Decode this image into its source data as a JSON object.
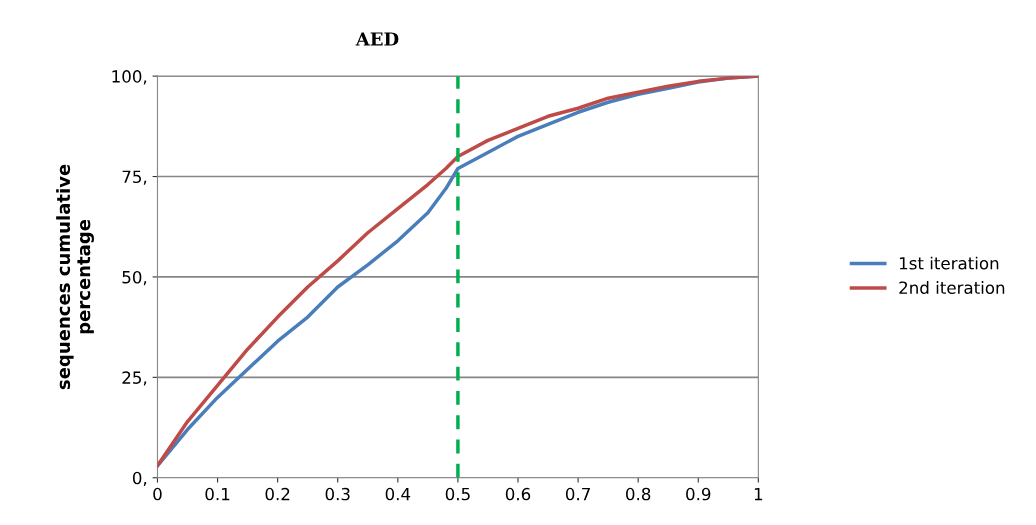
{
  "chart_data": {
    "type": "line",
    "title": "AED",
    "ylabel": "sequences cumulative\npercentage",
    "x": [
      0,
      0.05,
      0.1,
      0.15,
      0.2,
      0.25,
      0.3,
      0.35,
      0.4,
      0.45,
      0.48,
      0.5,
      0.55,
      0.6,
      0.65,
      0.7,
      0.75,
      0.8,
      0.85,
      0.9,
      0.95,
      1
    ],
    "series": [
      {
        "name": "1st iteration",
        "color": "#4a7ebb",
        "values": [
          3,
          12,
          20,
          27,
          34,
          40,
          47.5,
          53,
          59,
          66,
          72,
          77,
          81,
          85,
          88,
          91,
          93.5,
          95.5,
          97,
          98.5,
          99.5,
          100
        ]
      },
      {
        "name": "2nd iteration",
        "color": "#be4b48",
        "values": [
          3,
          14,
          23,
          32,
          40,
          47.5,
          54,
          61,
          67,
          73,
          77,
          80,
          84,
          87,
          90,
          92,
          94.5,
          96,
          97.5,
          98.7,
          99.5,
          100
        ]
      }
    ],
    "xlim": [
      0,
      1
    ],
    "xticks": [
      0,
      0.1,
      0.2,
      0.3,
      0.4,
      0.5,
      0.6,
      0.7,
      0.8,
      0.9,
      1
    ],
    "ylim": [
      0,
      100
    ],
    "yticks": [
      {
        "value": 0,
        "label": "0,"
      },
      {
        "value": 25,
        "label": "25,"
      },
      {
        "value": 50,
        "label": "50,"
      },
      {
        "value": 75,
        "label": "75,"
      },
      {
        "value": 100,
        "label": "100,"
      }
    ],
    "ref_lines": [
      {
        "axis": "x",
        "value": 0.5,
        "color": "#00b050",
        "line_style": "dashed"
      }
    ],
    "grid": "y",
    "legend": "right",
    "marker": "none",
    "line_style": "solid"
  }
}
